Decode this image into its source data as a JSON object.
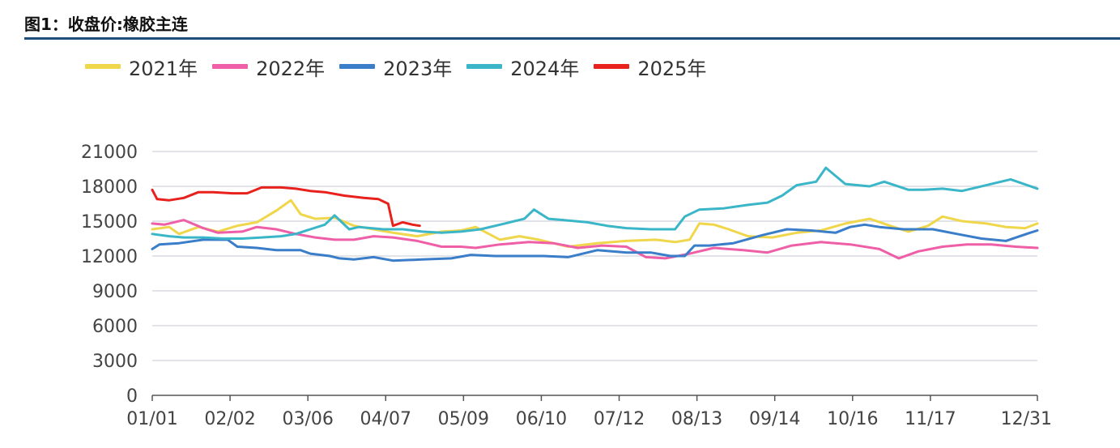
{
  "figure_title": "图1：收盘价:橡胶主连",
  "chart_data": {
    "type": "line",
    "title": "收盘价:橡胶主连",
    "xlabel": "",
    "ylabel": "",
    "ylim": [
      0,
      21000
    ],
    "yticks": [
      0,
      3000,
      6000,
      9000,
      12000,
      15000,
      18000,
      21000
    ],
    "xlim": [
      1,
      365
    ],
    "xticks": [
      {
        "day": 1,
        "label": "01/01"
      },
      {
        "day": 33,
        "label": "02/02"
      },
      {
        "day": 65,
        "label": "03/06"
      },
      {
        "day": 97,
        "label": "04/07"
      },
      {
        "day": 129,
        "label": "05/09"
      },
      {
        "day": 161,
        "label": "06/10"
      },
      {
        "day": 193,
        "label": "07/12"
      },
      {
        "day": 225,
        "label": "08/13"
      },
      {
        "day": 257,
        "label": "09/14"
      },
      {
        "day": 289,
        "label": "10/16"
      },
      {
        "day": 321,
        "label": "11/17"
      },
      {
        "day": 365,
        "label": "12/31"
      }
    ],
    "grid": "horizontal",
    "legend_position": "top-left",
    "series": [
      {
        "name": "2021年",
        "color": "#f0d64a",
        "x": [
          1,
          8,
          12,
          20,
          28,
          36,
          44,
          52,
          58,
          62,
          68,
          76,
          84,
          92,
          100,
          110,
          120,
          128,
          134,
          144,
          152,
          160,
          172,
          184,
          196,
          208,
          216,
          222,
          226,
          232,
          238,
          246,
          256,
          266,
          276,
          286,
          296,
          306,
          312,
          320,
          326,
          334,
          344,
          352,
          360,
          365
        ],
        "y": [
          14300,
          14500,
          13900,
          14500,
          14100,
          14600,
          14900,
          15900,
          16800,
          15600,
          15200,
          15300,
          14600,
          14300,
          14000,
          13700,
          14100,
          14200,
          14500,
          13400,
          13700,
          13400,
          12800,
          13100,
          13300,
          13400,
          13200,
          13400,
          14800,
          14700,
          14300,
          13700,
          13600,
          14000,
          14200,
          14800,
          15200,
          14500,
          14100,
          14600,
          15400,
          15000,
          14800,
          14500,
          14400,
          14800
        ]
      },
      {
        "name": "2022年",
        "color": "#ee5fa7",
        "x": [
          1,
          6,
          14,
          22,
          28,
          38,
          44,
          52,
          60,
          68,
          76,
          84,
          92,
          100,
          110,
          120,
          128,
          134,
          144,
          156,
          166,
          176,
          186,
          196,
          204,
          212,
          222,
          232,
          244,
          254,
          264,
          276,
          288,
          300,
          308,
          316,
          326,
          336,
          346,
          356,
          365
        ],
        "y": [
          14800,
          14700,
          15100,
          14400,
          14000,
          14100,
          14500,
          14300,
          13900,
          13600,
          13400,
          13400,
          13700,
          13600,
          13300,
          12800,
          12800,
          12700,
          13000,
          13200,
          13100,
          12700,
          12900,
          12800,
          11900,
          11800,
          12200,
          12700,
          12500,
          12300,
          12900,
          13200,
          13000,
          12600,
          11800,
          12400,
          12800,
          13000,
          13000,
          12800,
          12700
        ]
      },
      {
        "name": "2023年",
        "color": "#3a7dc9",
        "x": [
          1,
          4,
          12,
          22,
          32,
          36,
          44,
          52,
          62,
          66,
          74,
          78,
          84,
          92,
          100,
          112,
          124,
          132,
          142,
          152,
          162,
          172,
          184,
          196,
          206,
          214,
          220,
          224,
          230,
          240,
          252,
          262,
          272,
          282,
          288,
          294,
          300,
          310,
          316,
          322,
          332,
          342,
          352,
          362,
          365
        ],
        "y": [
          12600,
          13000,
          13100,
          13400,
          13400,
          12800,
          12700,
          12500,
          12500,
          12200,
          12000,
          11800,
          11700,
          11900,
          11600,
          11700,
          11800,
          12100,
          12000,
          12000,
          12000,
          11900,
          12500,
          12300,
          12300,
          12000,
          12000,
          12900,
          12900,
          13100,
          13800,
          14300,
          14200,
          14000,
          14500,
          14700,
          14500,
          14300,
          14300,
          14300,
          13900,
          13500,
          13300,
          14000,
          14200
        ]
      },
      {
        "name": "2024年",
        "color": "#3ab6c8",
        "x": [
          1,
          8,
          14,
          22,
          30,
          38,
          46,
          54,
          60,
          66,
          72,
          76,
          82,
          86,
          96,
          104,
          112,
          120,
          128,
          136,
          146,
          154,
          158,
          164,
          170,
          180,
          188,
          196,
          206,
          216,
          220,
          226,
          236,
          246,
          254,
          260,
          266,
          274,
          278,
          286,
          296,
          302,
          312,
          318,
          326,
          334,
          340,
          348,
          354,
          365
        ],
        "y": [
          13900,
          13700,
          13600,
          13600,
          13500,
          13500,
          13600,
          13700,
          13900,
          14300,
          14700,
          15500,
          14300,
          14500,
          14300,
          14300,
          14100,
          14000,
          14100,
          14300,
          14800,
          15200,
          16000,
          15200,
          15100,
          14900,
          14600,
          14400,
          14300,
          14300,
          15400,
          16000,
          16100,
          16400,
          16600,
          17200,
          18100,
          18400,
          19600,
          18200,
          18000,
          18400,
          17700,
          17700,
          17800,
          17600,
          17900,
          18300,
          18600,
          17800
        ]
      },
      {
        "name": "2025年",
        "color": "#e8211d",
        "x": [
          1,
          3,
          8,
          14,
          20,
          26,
          34,
          40,
          46,
          54,
          60,
          66,
          72,
          80,
          88,
          94,
          98,
          100,
          104,
          108,
          111
        ],
        "y": [
          17700,
          16900,
          16800,
          17000,
          17500,
          17500,
          17400,
          17400,
          17900,
          17900,
          17800,
          17600,
          17500,
          17200,
          17000,
          16900,
          16500,
          14600,
          14900,
          14700,
          14600
        ]
      }
    ]
  }
}
